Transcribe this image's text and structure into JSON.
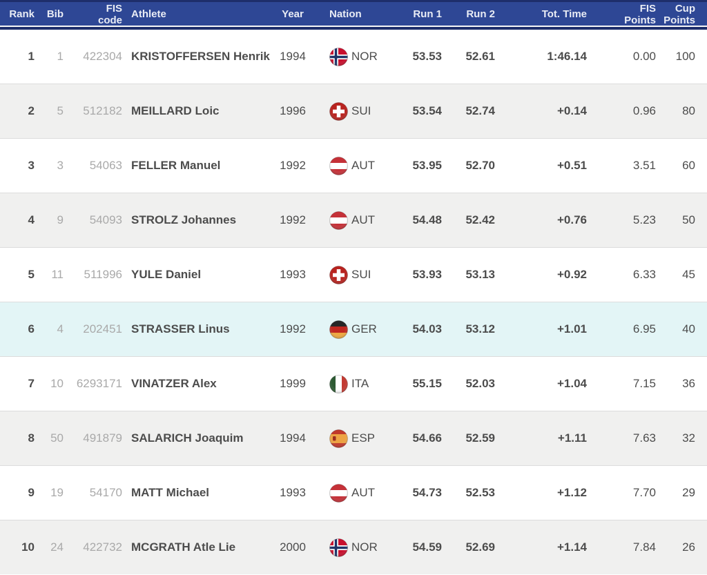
{
  "table": {
    "columns": [
      {
        "key": "rank",
        "label": "Rank"
      },
      {
        "key": "bib",
        "label": "Bib"
      },
      {
        "key": "fis_code",
        "label": "FIS\ncode"
      },
      {
        "key": "athlete",
        "label": "Athlete"
      },
      {
        "key": "year",
        "label": "Year"
      },
      {
        "key": "nation",
        "label": "Nation"
      },
      {
        "key": "run1",
        "label": "Run 1"
      },
      {
        "key": "run2",
        "label": "Run 2"
      },
      {
        "key": "tot_time",
        "label": "Tot. Time"
      },
      {
        "key": "fis_points",
        "label": "FIS\nPoints"
      },
      {
        "key": "cup_points",
        "label": "Cup\nPoints"
      }
    ],
    "rows": [
      {
        "rank": "1",
        "bib": "1",
        "fis_code": "422304",
        "athlete": "KRISTOFFERSEN Henrik",
        "year": "1994",
        "nation": "NOR",
        "flag": "nor",
        "run1": "53.53",
        "run2": "52.61",
        "tot_time": "1:46.14",
        "fis_points": "0.00",
        "cup_points": "100",
        "highlighted": false
      },
      {
        "rank": "2",
        "bib": "5",
        "fis_code": "512182",
        "athlete": "MEILLARD Loic",
        "year": "1996",
        "nation": "SUI",
        "flag": "sui",
        "run1": "53.54",
        "run2": "52.74",
        "tot_time": "+0.14",
        "fis_points": "0.96",
        "cup_points": "80",
        "highlighted": false
      },
      {
        "rank": "3",
        "bib": "3",
        "fis_code": "54063",
        "athlete": "FELLER Manuel",
        "year": "1992",
        "nation": "AUT",
        "flag": "aut",
        "run1": "53.95",
        "run2": "52.70",
        "tot_time": "+0.51",
        "fis_points": "3.51",
        "cup_points": "60",
        "highlighted": false
      },
      {
        "rank": "4",
        "bib": "9",
        "fis_code": "54093",
        "athlete": "STROLZ Johannes",
        "year": "1992",
        "nation": "AUT",
        "flag": "aut",
        "run1": "54.48",
        "run2": "52.42",
        "tot_time": "+0.76",
        "fis_points": "5.23",
        "cup_points": "50",
        "highlighted": false
      },
      {
        "rank": "5",
        "bib": "11",
        "fis_code": "511996",
        "athlete": "YULE Daniel",
        "year": "1993",
        "nation": "SUI",
        "flag": "sui",
        "run1": "53.93",
        "run2": "53.13",
        "tot_time": "+0.92",
        "fis_points": "6.33",
        "cup_points": "45",
        "highlighted": false
      },
      {
        "rank": "6",
        "bib": "4",
        "fis_code": "202451",
        "athlete": "STRASSER Linus",
        "year": "1992",
        "nation": "GER",
        "flag": "ger",
        "run1": "54.03",
        "run2": "53.12",
        "tot_time": "+1.01",
        "fis_points": "6.95",
        "cup_points": "40",
        "highlighted": true
      },
      {
        "rank": "7",
        "bib": "10",
        "fis_code": "6293171",
        "athlete": "VINATZER Alex",
        "year": "1999",
        "nation": "ITA",
        "flag": "ita",
        "run1": "55.15",
        "run2": "52.03",
        "tot_time": "+1.04",
        "fis_points": "7.15",
        "cup_points": "36",
        "highlighted": false
      },
      {
        "rank": "8",
        "bib": "50",
        "fis_code": "491879",
        "athlete": "SALARICH Joaquim",
        "year": "1994",
        "nation": "ESP",
        "flag": "esp",
        "run1": "54.66",
        "run2": "52.59",
        "tot_time": "+1.11",
        "fis_points": "7.63",
        "cup_points": "32",
        "highlighted": false
      },
      {
        "rank": "9",
        "bib": "19",
        "fis_code": "54170",
        "athlete": "MATT Michael",
        "year": "1993",
        "nation": "AUT",
        "flag": "aut",
        "run1": "54.73",
        "run2": "52.53",
        "tot_time": "+1.12",
        "fis_points": "7.70",
        "cup_points": "29",
        "highlighted": false
      },
      {
        "rank": "10",
        "bib": "24",
        "fis_code": "422732",
        "athlete": "MCGRATH Atle Lie",
        "year": "2000",
        "nation": "NOR",
        "flag": "nor",
        "run1": "54.59",
        "run2": "52.69",
        "tot_time": "+1.14",
        "fis_points": "7.84",
        "cup_points": "26",
        "highlighted": false
      }
    ]
  },
  "colors": {
    "header_bg": "#2e4795",
    "header_border": "#1e2e6b",
    "header_text": "#e9ecf5",
    "row_alt_bg": "#f0f0ef",
    "row_highlight_bg": "#e3f5f6",
    "text_dark": "#4c4c4c",
    "text_muted": "#a9a9a9",
    "row_divider": "#dcdcdc"
  }
}
